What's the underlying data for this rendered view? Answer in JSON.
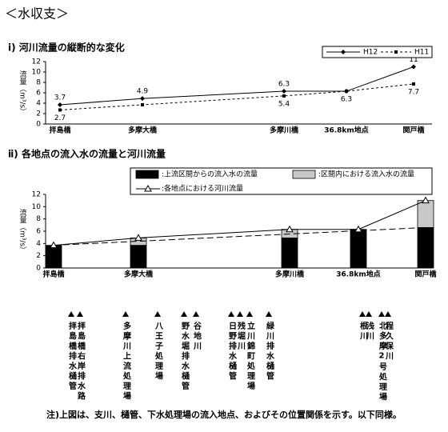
{
  "header": {
    "title": "＜水収支＞"
  },
  "chart_data": [
    {
      "type": "line",
      "title": "ⅰ) 河川流量の縦断的な変化",
      "y_label": "流量（m³/s）",
      "categories": [
        "拝島橋",
        "多摩大橋",
        "多摩川橋",
        "36.8km地点",
        "関戸橋"
      ],
      "series": [
        {
          "name": "H12",
          "color": "#000000",
          "values": [
            3.7,
            4.9,
            6.3,
            6.3,
            11
          ],
          "value_labels": [
            "3.7",
            "4.9",
            "6.3",
            null,
            "11"
          ]
        },
        {
          "name": "H11",
          "color": "#000000",
          "values": [
            2.7,
            3.7,
            5.4,
            6.3,
            7.7
          ],
          "value_labels": [
            "2.7",
            null,
            "5.4",
            "6.3",
            "7.7"
          ]
        }
      ],
      "ylim": [
        0,
        12
      ],
      "yticks": [
        0,
        2,
        4,
        6,
        8,
        10,
        12
      ],
      "grid": false,
      "legend": "top-right"
    },
    {
      "type": "bar",
      "stacked": true,
      "title": "ⅱ) 各地点の流入水の流量と河川流量",
      "y_label": "流量（m³/s）",
      "categories": [
        "拝島橋",
        "多摩大橋",
        "多摩川橋",
        "36.8km地点",
        "関戸橋"
      ],
      "series": [
        {
          "name": ":上流区間からの流入水の流量",
          "color": "#000000",
          "values": [
            3.7,
            3.7,
            4.9,
            6.3,
            6.6
          ]
        },
        {
          "name": ":区間内における流入水の流量",
          "color": "#c8c8c8",
          "values": [
            0,
            1.2,
            1.4,
            0,
            4.4
          ]
        },
        {
          "name": ":各地点における河川流量",
          "type": "line",
          "color": "#000000",
          "values": [
            3.7,
            4.9,
            6.3,
            6.3,
            11
          ]
        }
      ],
      "ylim": [
        0,
        12
      ],
      "yticks": [
        0,
        2,
        4,
        6,
        8,
        10,
        12
      ],
      "grid": false,
      "legend": "top"
    }
  ],
  "inflows": [
    "拝島橋排水樋管",
    "拝島橋右岸排水路",
    "多摩川上流処理場",
    "八王子処理場",
    "野水堀排水樋管",
    "谷地川",
    "日野排水樋管",
    "残堀川",
    "立川錦町処理場",
    "緑川排水樋管",
    "根川",
    "浅川",
    "北多摩2号処理場",
    "程久保川"
  ],
  "note": "注)上図は、支川、樋管、下水処理場の流入地点、およびその位置関係を示す。以下同様。"
}
